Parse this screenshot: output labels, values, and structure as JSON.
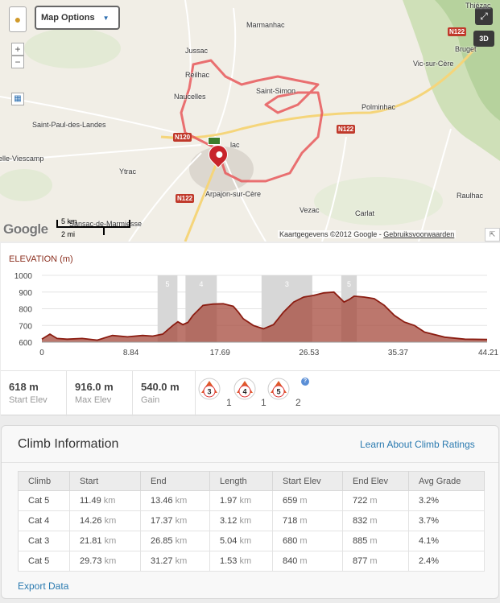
{
  "map": {
    "options_label": "Map Options",
    "logo_text": "Google",
    "scale_km": "5 km",
    "scale_mi": "2 mi",
    "attribution_prefix": "Kaartgegevens ©2012 Google - ",
    "attribution_link": "Gebruiksvoorwaarden",
    "btn_3d": "3D",
    "places": [
      {
        "name": "Thiézac"
      },
      {
        "name": "Marmanhac"
      },
      {
        "name": "Jussac"
      },
      {
        "name": "Bruget"
      },
      {
        "name": "Vic-sur-Cère"
      },
      {
        "name": "Reilhac"
      },
      {
        "name": "Naucelles"
      },
      {
        "name": "Saint-Simon"
      },
      {
        "name": "Polminhac"
      },
      {
        "name": "Saint-Paul-des-Landes"
      },
      {
        "name": "lac"
      },
      {
        "name": "elle-Viescamp"
      },
      {
        "name": "Ytrac"
      },
      {
        "name": "Arpajon-sur-Cère"
      },
      {
        "name": "Raulhac"
      },
      {
        "name": "Vezac"
      },
      {
        "name": "Carlat"
      },
      {
        "name": "Sansac-de-Marmiesse"
      }
    ],
    "roads": [
      {
        "label": "N122"
      },
      {
        "label": "N122"
      },
      {
        "label": "N122"
      },
      {
        "label": "N120"
      }
    ]
  },
  "elevation": {
    "title": "ELEVATION",
    "unit": "(m)",
    "chart_data": {
      "type": "area",
      "y_ticks": [
        "1000",
        "900",
        "800",
        "700",
        "600"
      ],
      "ylim": [
        600,
        1000
      ],
      "x_ticks": [
        "0",
        "8.84",
        "17.69",
        "26.53",
        "35.37",
        "44.21"
      ],
      "xlim": [
        0,
        44.21
      ],
      "series": [
        {
          "x": [
            0,
            0.8,
            1.5,
            2.5,
            4,
            5.5,
            7,
            8.5,
            10,
            11,
            12,
            13,
            13.5,
            14,
            14.5,
            15,
            16,
            17,
            18,
            19,
            19.5,
            20,
            21,
            22,
            23,
            24,
            25,
            26,
            27,
            28,
            29,
            29.5,
            30,
            30.5,
            31,
            32,
            33,
            34,
            35,
            36,
            37,
            38,
            40,
            42,
            44.21
          ],
          "y": [
            618,
            648,
            622,
            618,
            622,
            612,
            640,
            632,
            640,
            636,
            648,
            700,
            722,
            705,
            718,
            760,
            820,
            828,
            830,
            815,
            780,
            740,
            700,
            680,
            705,
            780,
            840,
            870,
            880,
            895,
            900,
            870,
            840,
            855,
            875,
            870,
            860,
            820,
            760,
            720,
            700,
            660,
            630,
            618,
            616
          ]
        }
      ],
      "climb_zones": [
        {
          "start": 11.49,
          "end": 13.46,
          "label": "5"
        },
        {
          "start": 14.26,
          "end": 17.37,
          "label": "4"
        },
        {
          "start": 21.81,
          "end": 26.85,
          "label": "3"
        },
        {
          "start": 29.73,
          "end": 31.27,
          "label": "5"
        }
      ]
    },
    "stats": [
      {
        "value": "618 m",
        "label": "Start Elev"
      },
      {
        "value": "916.0 m",
        "label": "Max Elev"
      },
      {
        "value": "540.0 m",
        "label": "Gain"
      }
    ],
    "badges": [
      {
        "cat": "3",
        "count": "1"
      },
      {
        "cat": "4",
        "count": "1"
      },
      {
        "cat": "5",
        "count": "2"
      }
    ],
    "help": "?"
  },
  "climb_info": {
    "title": "Climb Information",
    "learn_link": "Learn About Climb Ratings",
    "columns": [
      "Climb",
      "Start",
      "End",
      "Length",
      "Start Elev",
      "End Elev",
      "Avg Grade"
    ],
    "rows": [
      {
        "climb": "Cat 5",
        "start": "11.49",
        "end": "13.46",
        "length": "1.97",
        "start_elev": "659",
        "end_elev": "722",
        "grade": "3.2%"
      },
      {
        "climb": "Cat 4",
        "start": "14.26",
        "end": "17.37",
        "length": "3.12",
        "start_elev": "718",
        "end_elev": "832",
        "grade": "3.7%"
      },
      {
        "climb": "Cat 3",
        "start": "21.81",
        "end": "26.85",
        "length": "5.04",
        "start_elev": "680",
        "end_elev": "885",
        "grade": "4.1%"
      },
      {
        "climb": "Cat 5",
        "start": "29.73",
        "end": "31.27",
        "length": "1.53",
        "start_elev": "840",
        "end_elev": "877",
        "grade": "2.4%"
      }
    ],
    "units": {
      "km": "km",
      "m": "m"
    },
    "export_label": "Export Data"
  }
}
